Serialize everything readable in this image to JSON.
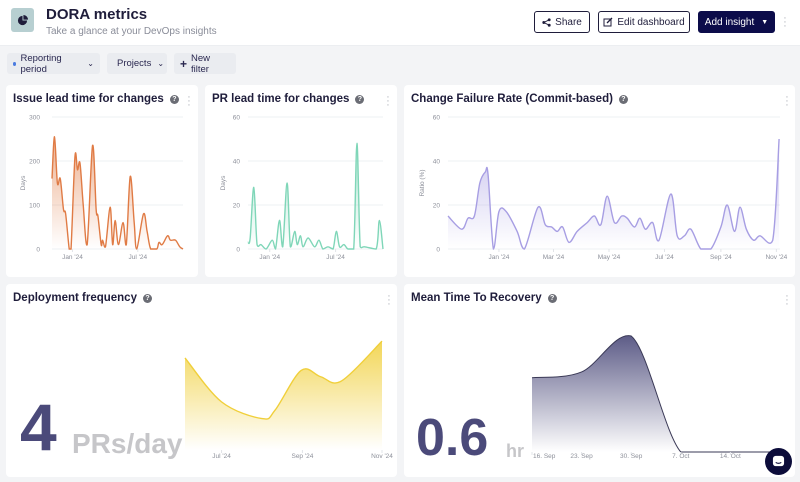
{
  "header": {
    "title": "DORA metrics",
    "subtitle": "Take a glance at your DevOps insights",
    "share": "Share",
    "edit": "Edit dashboard",
    "add": "Add insight"
  },
  "filters": [
    {
      "label": "Reporting period",
      "dot": "#4a7be0"
    },
    {
      "label": "Projects",
      "dot": "#a0a3ab"
    },
    {
      "label": "New filter"
    }
  ],
  "colors": {
    "orange": "#e07b45",
    "green": "#7fd6b8",
    "purple": "#a79ee3",
    "yellow": "#f0cf3a",
    "navy": "#4b4a7a"
  },
  "cards": {
    "issue": {
      "title": "Issue lead time for changes"
    },
    "pr": {
      "title": "PR lead time for changes"
    },
    "cfr": {
      "title": "Change Failure Rate (Commit-based)"
    },
    "deploy": {
      "title": "Deployment frequency",
      "value": "4",
      "unit": "PRs/day"
    },
    "mttr": {
      "title": "Mean Time To Recovery",
      "value": "0.6",
      "unit": "hr"
    }
  },
  "chart_data": [
    {
      "id": "issue",
      "type": "area",
      "ylabel": "Days",
      "ylim": [
        0,
        300
      ],
      "yticks": [
        0,
        100,
        200,
        300
      ],
      "xlim": [
        "2023-11-05",
        "2024-11-04"
      ],
      "xticks": [
        {
          "label": "Jan '24",
          "date": "2024-01-01"
        },
        {
          "label": "Jul '24",
          "date": "2024-07-01"
        }
      ],
      "grid": true,
      "color": "#e07b45",
      "points": [
        [
          "2023-11-05",
          160
        ],
        [
          "2023-11-12",
          255
        ],
        [
          "2023-11-20",
          150
        ],
        [
          "2023-11-28",
          160
        ],
        [
          "2023-12-07",
          90
        ],
        [
          "2023-12-13",
          80
        ],
        [
          "2023-12-23",
          0
        ],
        [
          "2023-12-28",
          0
        ],
        [
          "2024-01-08",
          210
        ],
        [
          "2024-01-15",
          180
        ],
        [
          "2024-01-22",
          195
        ],
        [
          "2024-01-31",
          100
        ],
        [
          "2024-02-11",
          10
        ],
        [
          "2024-02-26",
          235
        ],
        [
          "2024-03-07",
          90
        ],
        [
          "2024-03-12",
          75
        ],
        [
          "2024-03-21",
          10
        ],
        [
          "2024-03-25",
          20
        ],
        [
          "2024-04-02",
          5
        ],
        [
          "2024-04-15",
          95
        ],
        [
          "2024-04-22",
          10
        ],
        [
          "2024-04-29",
          65
        ],
        [
          "2024-05-08",
          10
        ],
        [
          "2024-05-21",
          60
        ],
        [
          "2024-05-30",
          10
        ],
        [
          "2024-06-10",
          165
        ],
        [
          "2024-06-21",
          60
        ],
        [
          "2024-06-28",
          0
        ],
        [
          "2024-07-17",
          80
        ],
        [
          "2024-07-27",
          40
        ],
        [
          "2024-08-06",
          0
        ],
        [
          "2024-08-23",
          0
        ],
        [
          "2024-08-29",
          15
        ],
        [
          "2024-09-07",
          10
        ],
        [
          "2024-09-22",
          30
        ],
        [
          "2024-09-30",
          20
        ],
        [
          "2024-10-14",
          20
        ],
        [
          "2024-10-26",
          5
        ],
        [
          "2024-11-04",
          0
        ]
      ]
    },
    {
      "id": "pr",
      "type": "line",
      "ylabel": "Days",
      "ylim": [
        0,
        60
      ],
      "yticks": [
        0,
        20,
        40,
        60
      ],
      "xlim": [
        "2023-11-02",
        "2024-11-09"
      ],
      "xticks": [
        {
          "label": "Jan '24",
          "date": "2024-01-01"
        },
        {
          "label": "Jul '24",
          "date": "2024-07-01"
        }
      ],
      "grid": true,
      "color": "#7fd6b8",
      "points": [
        [
          "2023-11-02",
          3
        ],
        [
          "2023-11-08",
          5
        ],
        [
          "2023-11-18",
          28
        ],
        [
          "2023-11-27",
          2
        ],
        [
          "2023-12-08",
          2
        ],
        [
          "2023-12-22",
          0
        ],
        [
          "2024-01-08",
          4
        ],
        [
          "2024-01-17",
          0
        ],
        [
          "2024-01-28",
          13
        ],
        [
          "2024-02-06",
          1
        ],
        [
          "2024-02-18",
          30
        ],
        [
          "2024-02-27",
          1
        ],
        [
          "2024-03-10",
          8
        ],
        [
          "2024-03-17",
          2
        ],
        [
          "2024-03-26",
          6
        ],
        [
          "2024-04-02",
          1
        ],
        [
          "2024-04-16",
          5
        ],
        [
          "2024-05-04",
          1
        ],
        [
          "2024-05-16",
          4
        ],
        [
          "2024-05-27",
          0
        ],
        [
          "2024-06-10",
          1
        ],
        [
          "2024-06-24",
          0
        ],
        [
          "2024-07-03",
          8
        ],
        [
          "2024-07-12",
          1
        ],
        [
          "2024-07-24",
          2
        ],
        [
          "2024-08-04",
          0
        ],
        [
          "2024-08-20",
          0
        ],
        [
          "2024-08-29",
          48
        ],
        [
          "2024-09-07",
          1
        ],
        [
          "2024-09-19",
          1
        ],
        [
          "2024-10-21",
          0
        ],
        [
          "2024-10-30",
          13
        ],
        [
          "2024-11-09",
          0
        ]
      ]
    },
    {
      "id": "cfr",
      "type": "area",
      "ylabel": "Ratio (%)",
      "ylim": [
        0,
        60
      ],
      "yticks": [
        0,
        20,
        40,
        60
      ],
      "xlim": [
        "2023-11-06",
        "2024-11-05"
      ],
      "xticks": [
        {
          "label": "Jan '24",
          "date": "2024-01-01"
        },
        {
          "label": "Mar '24",
          "date": "2024-03-01"
        },
        {
          "label": "May '24",
          "date": "2024-05-01"
        },
        {
          "label": "Jul '24",
          "date": "2024-07-01"
        },
        {
          "label": "Sep '24",
          "date": "2024-09-01"
        },
        {
          "label": "Nov '24",
          "date": "2024-11-01"
        }
      ],
      "grid": true,
      "color": "#a79ee3",
      "points": [
        [
          "2023-11-06",
          15
        ],
        [
          "2023-11-21",
          9
        ],
        [
          "2023-11-28",
          14
        ],
        [
          "2023-12-05",
          15
        ],
        [
          "2023-12-11",
          30
        ],
        [
          "2023-12-17",
          35
        ],
        [
          "2023-12-20",
          34
        ],
        [
          "2023-12-26",
          0
        ],
        [
          "2024-01-01",
          17
        ],
        [
          "2024-01-09",
          17
        ],
        [
          "2024-01-21",
          8
        ],
        [
          "2024-01-29",
          0
        ],
        [
          "2024-02-13",
          19
        ],
        [
          "2024-02-21",
          11
        ],
        [
          "2024-02-28",
          10
        ],
        [
          "2024-03-05",
          8
        ],
        [
          "2024-03-11",
          10
        ],
        [
          "2024-03-18",
          3
        ],
        [
          "2024-03-27",
          8
        ],
        [
          "2024-04-07",
          12
        ],
        [
          "2024-04-15",
          15
        ],
        [
          "2024-04-22",
          11
        ],
        [
          "2024-04-29",
          24
        ],
        [
          "2024-05-07",
          12
        ],
        [
          "2024-05-15",
          15
        ],
        [
          "2024-05-21",
          14
        ],
        [
          "2024-05-29",
          10
        ],
        [
          "2024-06-04",
          14
        ],
        [
          "2024-06-10",
          9
        ],
        [
          "2024-06-18",
          12
        ],
        [
          "2024-06-25",
          4
        ],
        [
          "2024-07-08",
          25
        ],
        [
          "2024-07-15",
          6
        ],
        [
          "2024-07-23",
          6
        ],
        [
          "2024-07-30",
          9
        ],
        [
          "2024-08-10",
          0
        ],
        [
          "2024-08-21",
          0
        ],
        [
          "2024-09-01",
          10
        ],
        [
          "2024-09-08",
          20
        ],
        [
          "2024-09-16",
          8
        ],
        [
          "2024-09-22",
          19
        ],
        [
          "2024-09-29",
          9
        ],
        [
          "2024-10-07",
          4
        ],
        [
          "2024-10-14",
          6
        ],
        [
          "2024-10-28",
          4
        ],
        [
          "2024-11-04",
          50
        ]
      ]
    },
    {
      "id": "deploy",
      "type": "area",
      "ylim": [
        0,
        5.4
      ],
      "xlim": [
        "2024-06-03",
        "2024-11-01"
      ],
      "xticks": [
        {
          "label": "Jul '24",
          "date": "2024-07-01"
        },
        {
          "label": "Sep '24",
          "date": "2024-09-01"
        },
        {
          "label": "Nov '24",
          "date": "2024-11-01"
        }
      ],
      "grid": false,
      "color": "#f0cf3a",
      "points": [
        [
          "2024-06-03",
          4.4
        ],
        [
          "2024-07-01",
          2.3
        ],
        [
          "2024-08-01",
          1.5
        ],
        [
          "2024-08-11",
          1.9
        ],
        [
          "2024-08-31",
          3.8
        ],
        [
          "2024-09-15",
          3.5
        ],
        [
          "2024-10-01",
          3.3
        ],
        [
          "2024-11-01",
          5.2
        ]
      ]
    },
    {
      "id": "mttr",
      "type": "area",
      "ylim": [
        0,
        1.0
      ],
      "xlim": [
        "2024-09-16",
        "2024-10-21"
      ],
      "xticks": [
        {
          "label": "16. Sep",
          "date": "2024-09-16"
        },
        {
          "label": "23. Sep",
          "date": "2024-09-23"
        },
        {
          "label": "30. Sep",
          "date": "2024-09-30"
        },
        {
          "label": "7. Oct",
          "date": "2024-10-07"
        },
        {
          "label": "14. Oct",
          "date": "2024-10-14"
        }
      ],
      "grid": false,
      "color": "#4b4a7a",
      "points": [
        [
          "2024-09-16",
          0.64
        ],
        [
          "2024-09-23",
          0.69
        ],
        [
          "2024-09-30",
          1.0
        ],
        [
          "2024-10-07",
          0
        ],
        [
          "2024-10-14",
          0
        ],
        [
          "2024-10-21",
          0
        ]
      ]
    }
  ]
}
